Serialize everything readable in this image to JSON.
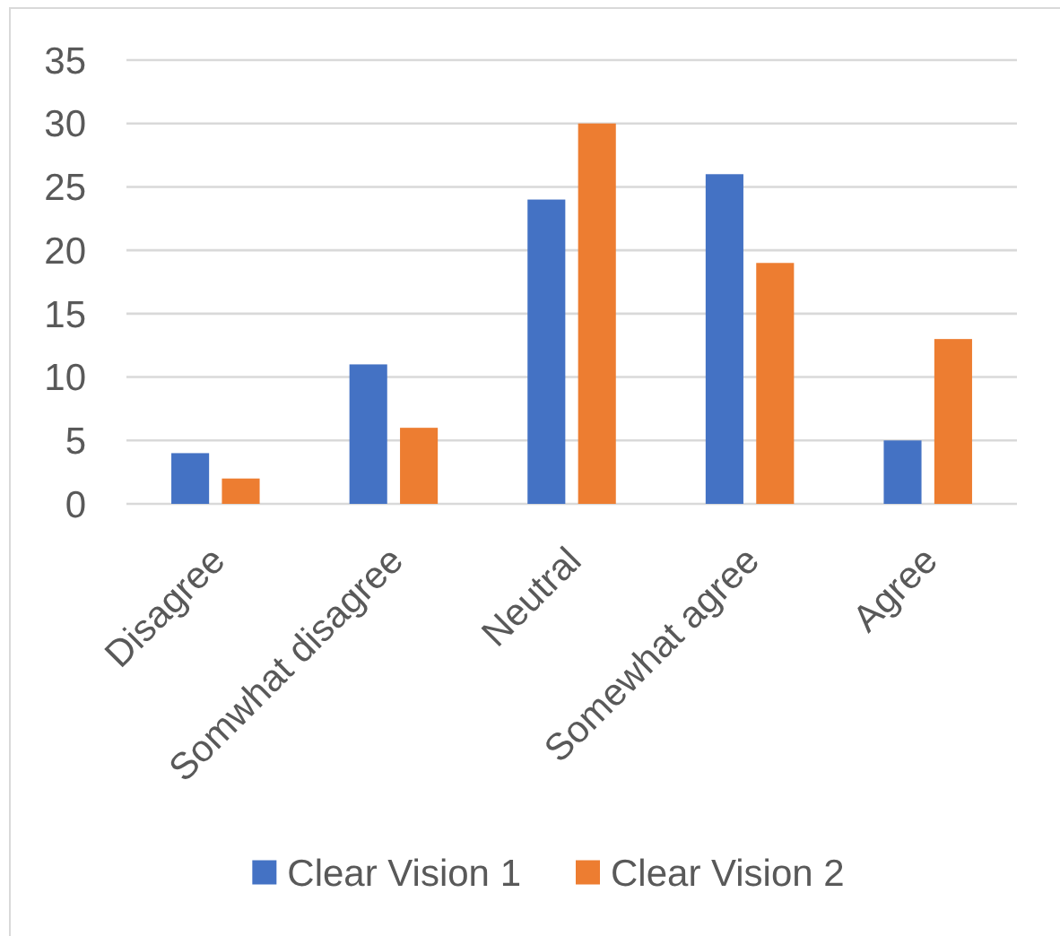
{
  "chart_data": {
    "type": "bar",
    "categories": [
      "Disagree",
      "Somwhat disagree",
      "Neutral",
      "Somewhat agree",
      "Agree"
    ],
    "series": [
      {
        "name": "Clear Vision 1",
        "color": "#4472c4",
        "values": [
          4,
          11,
          24,
          26,
          5
        ]
      },
      {
        "name": "Clear Vision 2",
        "color": "#ed7d31",
        "values": [
          2,
          6,
          30,
          19,
          13
        ]
      }
    ],
    "ylim": [
      0,
      35
    ],
    "yticks": [
      0,
      5,
      10,
      15,
      20,
      25,
      30,
      35
    ],
    "grid": "y",
    "legend": "bottom"
  }
}
